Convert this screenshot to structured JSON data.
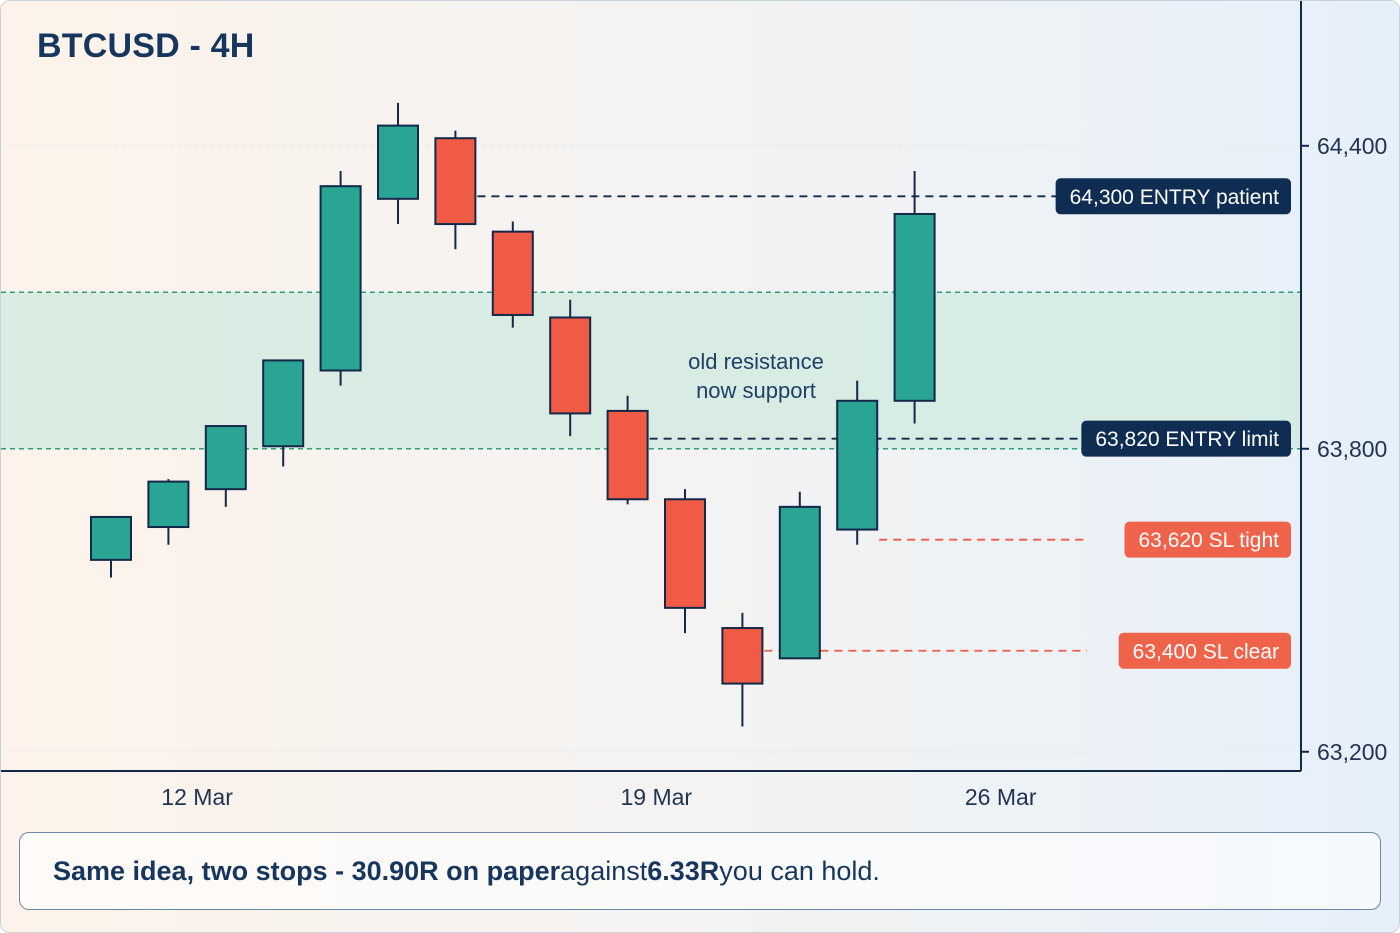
{
  "title": "BTCUSD - 4H",
  "caption": {
    "part1": "Same idea, two stops - 30.90R on paper",
    "part2": " against ",
    "part3": "6.33R",
    "part4": " you can hold."
  },
  "colors": {
    "bull": "#2aa593",
    "bear": "#ef5b45",
    "outline": "#14284a",
    "zone_fill": "#cfeadf",
    "zone_line": "#2f9e7e",
    "entry_line": "#14284a",
    "stop_line": "#ef5b45",
    "entry_label_bg": "#0f2d52",
    "stop_label_bg": "#ef634a"
  },
  "chart_data": {
    "type": "candlestick",
    "title": "BTCUSD - 4H",
    "ylim": [
      63150,
      64560
    ],
    "y_ticks": [
      {
        "value": 64400,
        "label": "64,400"
      },
      {
        "value": 63800,
        "label": "63,800"
      },
      {
        "value": 63200,
        "label": "63,200"
      }
    ],
    "x_ticks": [
      {
        "index": 1.5,
        "label": "12 Mar"
      },
      {
        "index": 9.5,
        "label": "19 Mar"
      },
      {
        "index": 15.5,
        "label": "26 Mar"
      }
    ],
    "candles": [
      {
        "open": 63580,
        "high": 63660,
        "low": 63545,
        "close": 63665
      },
      {
        "open": 63645,
        "high": 63740,
        "low": 63610,
        "close": 63735
      },
      {
        "open": 63720,
        "high": 63845,
        "low": 63685,
        "close": 63845
      },
      {
        "open": 63805,
        "high": 63975,
        "low": 63765,
        "close": 63975
      },
      {
        "open": 63955,
        "high": 64350,
        "low": 63925,
        "close": 64320
      },
      {
        "open": 64295,
        "high": 64485,
        "low": 64245,
        "close": 64440
      },
      {
        "open": 64415,
        "high": 64430,
        "low": 64195,
        "close": 64245
      },
      {
        "open": 64230,
        "high": 64250,
        "low": 64040,
        "close": 64065
      },
      {
        "open": 64060,
        "high": 64095,
        "low": 63825,
        "close": 63870
      },
      {
        "open": 63875,
        "high": 63905,
        "low": 63690,
        "close": 63700
      },
      {
        "open": 63700,
        "high": 63720,
        "low": 63435,
        "close": 63485
      },
      {
        "open": 63445,
        "high": 63475,
        "low": 63250,
        "close": 63335
      },
      {
        "open": 63385,
        "high": 63715,
        "low": 63385,
        "close": 63685
      },
      {
        "open": 63640,
        "high": 63935,
        "low": 63610,
        "close": 63895
      },
      {
        "open": 63895,
        "high": 64350,
        "low": 63850,
        "close": 64265
      }
    ],
    "zone": {
      "low": 63800,
      "high": 64110,
      "label_line1": "old resistance",
      "label_line2": "now support"
    },
    "levels": [
      {
        "value": 64300,
        "label": "64,300 ENTRY patient",
        "kind": "entry",
        "from_index": 6
      },
      {
        "value": 63820,
        "label": "63,820 ENTRY limit",
        "kind": "entry",
        "from_index": 9
      },
      {
        "value": 63620,
        "label": "63,620 SL tight",
        "kind": "stop",
        "from_index": 13
      },
      {
        "value": 63400,
        "label": "63,400 SL clear",
        "kind": "stop",
        "from_index": 11
      }
    ]
  }
}
